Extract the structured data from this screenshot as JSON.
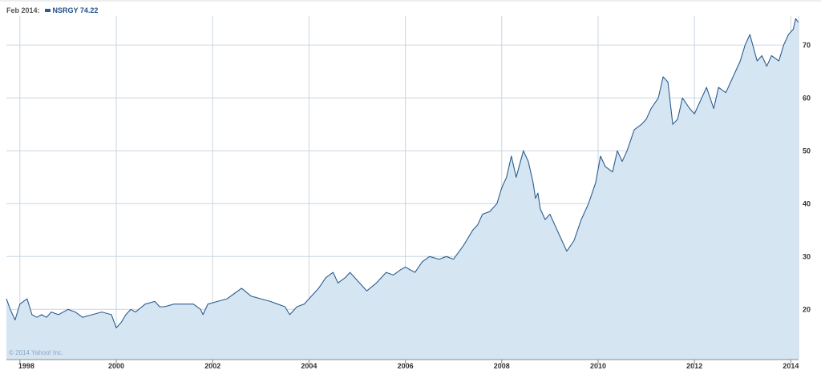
{
  "header": {
    "date_label": "Feb 2014:",
    "series_label": "NSRGY 74.22"
  },
  "copyright": "© 2014 Yahoo! Inc.",
  "colors": {
    "line": "#2a5d91",
    "fill": "#d6e5f2",
    "grid": "#c9d6e1",
    "axis": "#8a8a8a"
  },
  "chart_data": {
    "type": "area",
    "title": "",
    "xlabel": "",
    "ylabel": "",
    "grid": true,
    "legend": "top-left",
    "xlim": [
      1997.72,
      2014.16
    ],
    "ylim": [
      10.5,
      75.5
    ],
    "x_ticks": [
      1998,
      2000,
      2002,
      2004,
      2006,
      2008,
      2010,
      2012,
      2014
    ],
    "x_tick_labels": [
      "1998",
      "2000",
      "2002",
      "2004",
      "2006",
      "2008",
      "2010",
      "2012",
      "2014"
    ],
    "y_ticks": [
      20,
      30,
      40,
      50,
      60,
      70
    ],
    "y_tick_labels": [
      "20",
      "30",
      "40",
      "50",
      "60",
      "70"
    ],
    "series": [
      {
        "name": "NSRGY",
        "x": [
          1997.72,
          1997.8,
          1997.9,
          1998.0,
          1998.15,
          1998.25,
          1998.35,
          1998.45,
          1998.55,
          1998.65,
          1998.8,
          1999.0,
          1999.15,
          1999.3,
          1999.5,
          1999.7,
          1999.9,
          2000.0,
          2000.1,
          2000.2,
          2000.3,
          2000.4,
          2000.6,
          2000.8,
          2000.9,
          2001.0,
          2001.2,
          2001.4,
          2001.6,
          2001.75,
          2001.8,
          2001.9,
          2002.1,
          2002.3,
          2002.45,
          2002.6,
          2002.8,
          2003.0,
          2003.2,
          2003.35,
          2003.5,
          2003.6,
          2003.75,
          2003.9,
          2004.0,
          2004.1,
          2004.2,
          2004.35,
          2004.5,
          2004.6,
          2004.75,
          2004.85,
          2005.0,
          2005.2,
          2005.4,
          2005.6,
          2005.75,
          2005.9,
          2006.0,
          2006.2,
          2006.35,
          2006.5,
          2006.7,
          2006.85,
          2007.0,
          2007.2,
          2007.4,
          2007.5,
          2007.6,
          2007.75,
          2007.9,
          2008.0,
          2008.1,
          2008.2,
          2008.3,
          2008.45,
          2008.55,
          2008.65,
          2008.7,
          2008.75,
          2008.8,
          2008.9,
          2009.0,
          2009.1,
          2009.2,
          2009.35,
          2009.5,
          2009.65,
          2009.8,
          2009.95,
          2010.05,
          2010.15,
          2010.3,
          2010.4,
          2010.5,
          2010.6,
          2010.75,
          2010.9,
          2011.0,
          2011.1,
          2011.25,
          2011.35,
          2011.45,
          2011.55,
          2011.65,
          2011.75,
          2011.9,
          2012.0,
          2012.15,
          2012.25,
          2012.4,
          2012.5,
          2012.65,
          2012.8,
          2012.95,
          2013.05,
          2013.15,
          2013.3,
          2013.4,
          2013.5,
          2013.6,
          2013.75,
          2013.85,
          2013.95,
          2014.05,
          2014.1,
          2014.16
        ],
        "values": [
          22,
          20,
          18,
          21,
          22,
          19,
          18.5,
          19,
          18.5,
          19.5,
          19,
          20,
          19.5,
          18.5,
          19,
          19.5,
          19,
          16.5,
          17.5,
          19,
          20,
          19.5,
          21,
          21.5,
          20.5,
          20.5,
          21,
          21,
          21,
          20,
          19,
          21,
          21.5,
          22,
          23,
          24,
          22.5,
          22,
          21.5,
          21,
          20.5,
          19,
          20.5,
          21,
          22,
          23,
          24,
          26,
          27,
          25,
          26,
          27,
          25.5,
          23.5,
          25,
          27,
          26.5,
          27.5,
          28,
          27,
          29,
          30,
          29.5,
          30,
          29.5,
          32,
          35,
          36,
          38,
          38.5,
          40,
          43,
          45,
          49,
          45,
          50,
          48,
          44,
          41,
          42,
          39,
          37,
          38,
          36,
          34,
          31,
          33,
          37,
          40,
          44,
          49,
          47,
          46,
          50,
          48,
          50,
          54,
          55,
          56,
          58,
          60,
          64,
          63,
          55,
          56,
          60,
          58,
          57,
          60,
          62,
          58,
          62,
          61,
          64,
          67,
          70,
          72,
          67,
          68,
          66,
          68,
          67,
          70,
          72,
          73,
          75,
          74.22
        ]
      }
    ]
  }
}
